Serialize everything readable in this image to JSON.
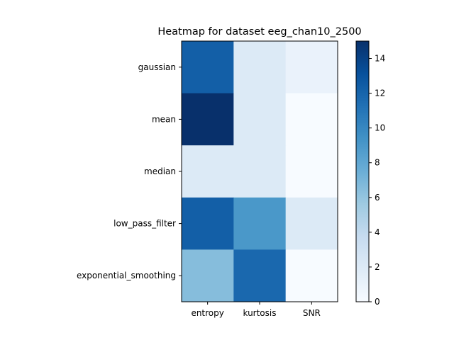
{
  "chart_data": {
    "type": "heatmap",
    "title": "Heatmap for dataset eeg_chan10_2500",
    "xlabel": "",
    "ylabel": "",
    "x_categories": [
      "entropy",
      "kurtosis",
      "SNR"
    ],
    "y_categories": [
      "gaussian",
      "mean",
      "median",
      "low_pass_filter",
      "exponential_smoothing"
    ],
    "values": [
      [
        12.3,
        2.0,
        1.0
      ],
      [
        15.0,
        2.0,
        0.0
      ],
      [
        2.0,
        2.0,
        0.0
      ],
      [
        12.3,
        9.0,
        2.0
      ],
      [
        6.5,
        11.8,
        0.0
      ]
    ],
    "colormap": "Blues",
    "vmin": 0,
    "vmax": 15,
    "colorbar_ticks": [
      "0",
      "2",
      "4",
      "6",
      "8",
      "10",
      "12",
      "14"
    ],
    "colorbar_tick_values": [
      0,
      2,
      4,
      6,
      8,
      10,
      12,
      14
    ],
    "grid": false,
    "legend": "none"
  }
}
